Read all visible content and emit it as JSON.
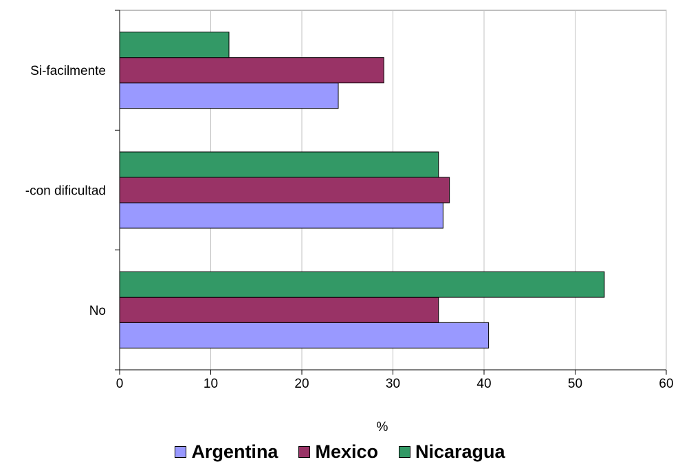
{
  "chart_data": {
    "type": "bar",
    "orientation": "horizontal",
    "categories": [
      "Si-facilmente",
      "-con dificultad",
      "No"
    ],
    "series": [
      {
        "name": "Argentina",
        "color": "#9999ff",
        "values": [
          24,
          35.5,
          40.5
        ]
      },
      {
        "name": "Mexico",
        "color": "#993366",
        "values": [
          29,
          36.2,
          35
        ]
      },
      {
        "name": "Nicaragua",
        "color": "#339966",
        "values": [
          12,
          35,
          53.2
        ]
      }
    ],
    "xlabel": "%",
    "xlim": [
      0,
      60
    ],
    "xticks": [
      "0",
      "10",
      "20",
      "30",
      "40",
      "50",
      "60"
    ],
    "grid": "vertical",
    "legend": "bottom"
  }
}
